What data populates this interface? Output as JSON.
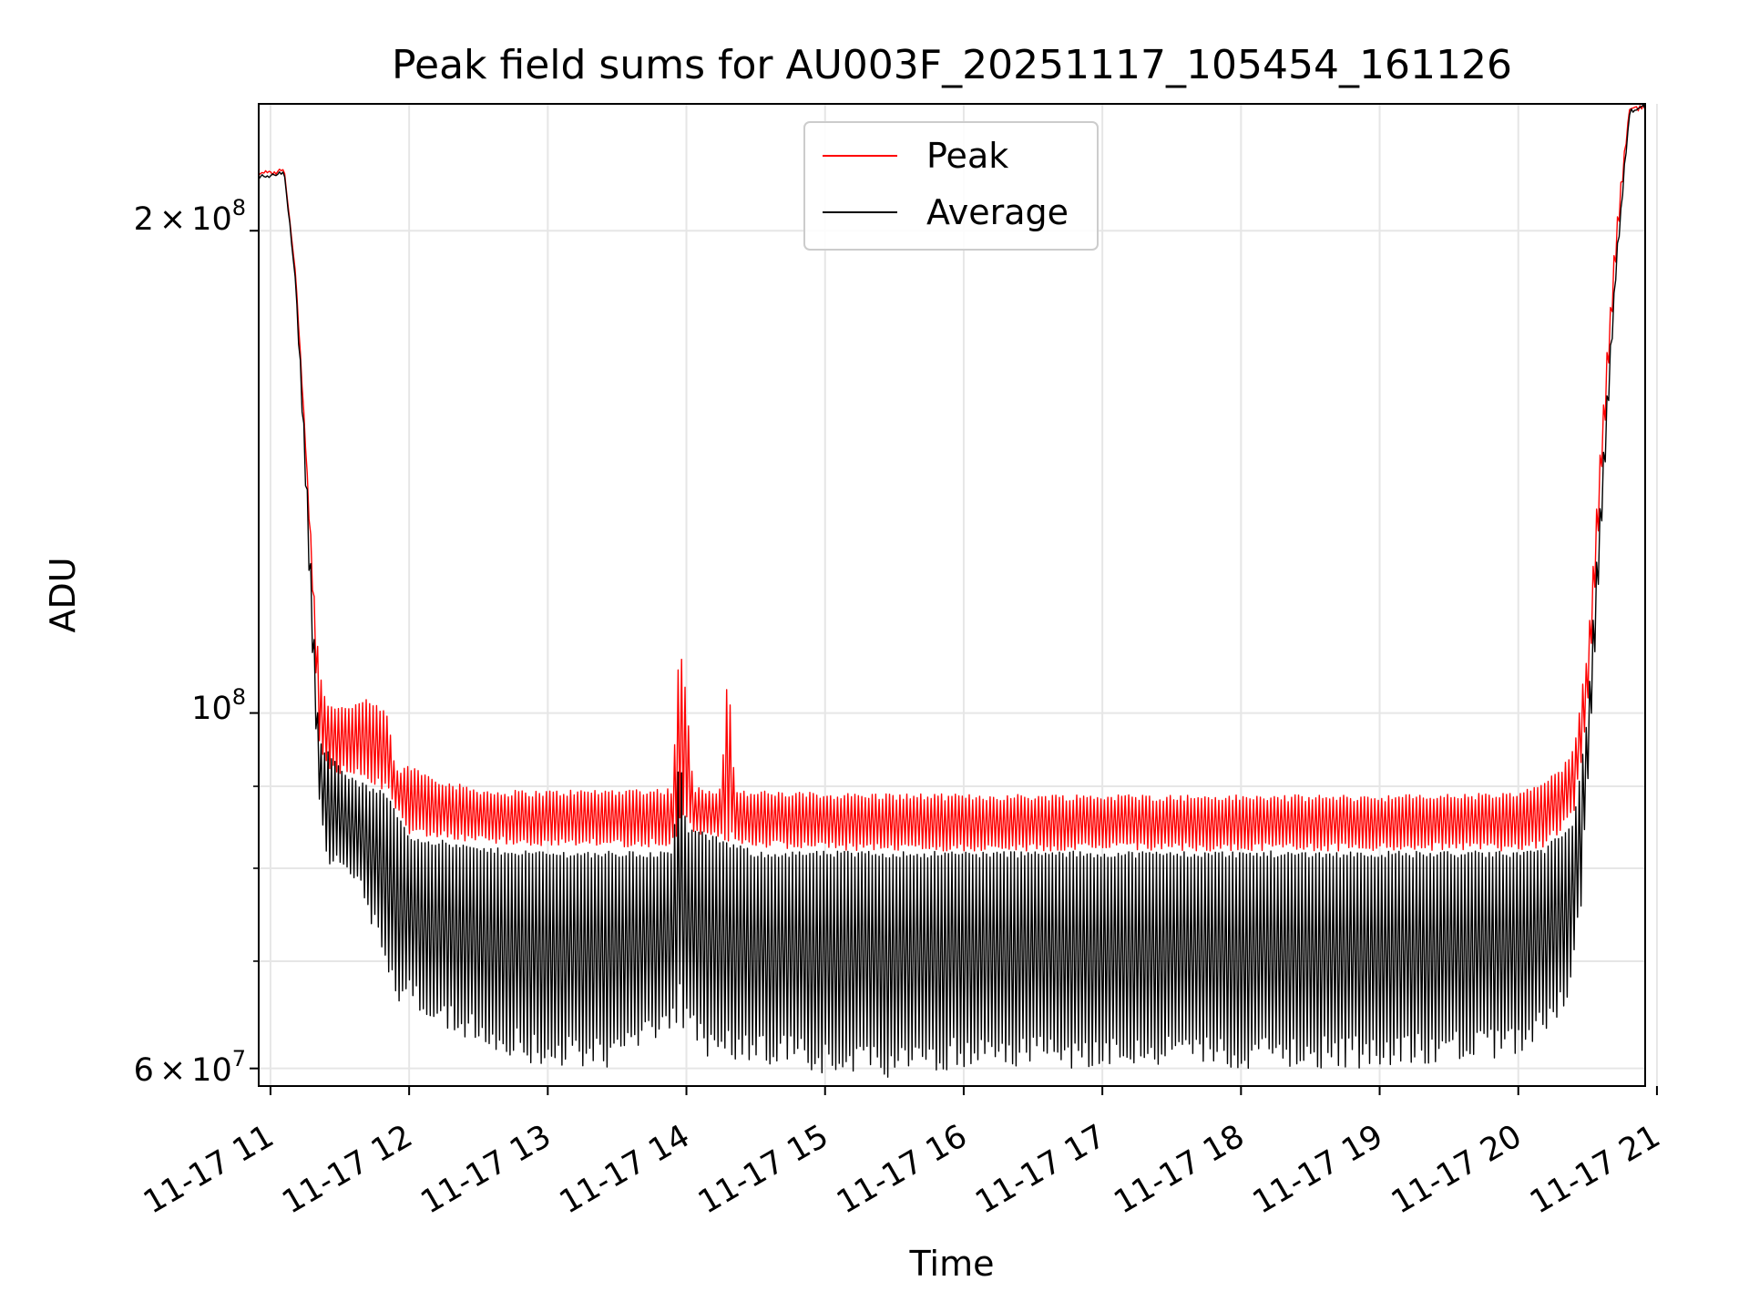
{
  "chart_data": {
    "type": "line",
    "title": "Peak field sums for AU003F_20251117_105454_161126",
    "xlabel": "Time",
    "ylabel": "ADU",
    "x_unit": "hour of 2025-11-17",
    "xlim": [
      10.915,
      20.915
    ],
    "ylim_log": [
      58500000,
      240000000
    ],
    "y_scale": "log",
    "grid": true,
    "legend_position": "upper center",
    "x_ticks": [
      {
        "value": 11,
        "label": "11-17 11"
      },
      {
        "value": 12,
        "label": "11-17 12"
      },
      {
        "value": 13,
        "label": "11-17 13"
      },
      {
        "value": 14,
        "label": "11-17 14"
      },
      {
        "value": 15,
        "label": "11-17 15"
      },
      {
        "value": 16,
        "label": "11-17 16"
      },
      {
        "value": 17,
        "label": "11-17 17"
      },
      {
        "value": 18,
        "label": "11-17 18"
      },
      {
        "value": 19,
        "label": "11-17 19"
      },
      {
        "value": 20,
        "label": "11-17 20"
      },
      {
        "value": 21,
        "label": "11-17 21"
      }
    ],
    "y_major_ticks": [
      {
        "value": 60000000,
        "mantissa": "6",
        "exponent": "7"
      },
      {
        "value": 100000000,
        "mantissa": "",
        "exponent": "8"
      },
      {
        "value": 200000000,
        "mantissa": "2",
        "exponent": "8"
      }
    ],
    "y_minor_ticks": [
      70000000,
      80000000,
      90000000
    ],
    "series": [
      {
        "name": "Peak",
        "color": "#ff0000",
        "envelope_top": [
          [
            10.915,
            218000000
          ],
          [
            11.1,
            219000000
          ],
          [
            11.18,
            190000000
          ],
          [
            11.25,
            150000000
          ],
          [
            11.3,
            125000000
          ],
          [
            11.35,
            107000000
          ],
          [
            11.4,
            102000000
          ],
          [
            11.5,
            101000000
          ],
          [
            11.7,
            102000000
          ],
          [
            11.85,
            100000000
          ],
          [
            11.9,
            92000000
          ],
          [
            12.0,
            93000000
          ],
          [
            12.1,
            92000000
          ],
          [
            12.3,
            90500000
          ],
          [
            12.6,
            89500000
          ],
          [
            13.0,
            89500000
          ],
          [
            13.5,
            89700000
          ],
          [
            13.9,
            89800000
          ],
          [
            13.95,
            112000000
          ],
          [
            14.0,
            102000000
          ],
          [
            14.05,
            90000000
          ],
          [
            14.25,
            89800000
          ],
          [
            14.3,
            108000000
          ],
          [
            14.35,
            89500000
          ],
          [
            15.0,
            89200000
          ],
          [
            16.0,
            89000000
          ],
          [
            17.0,
            89000000
          ],
          [
            18.0,
            88900000
          ],
          [
            19.0,
            88900000
          ],
          [
            20.0,
            89200000
          ],
          [
            20.1,
            90000000
          ],
          [
            20.3,
            92000000
          ],
          [
            20.4,
            95000000
          ],
          [
            20.5,
            110000000
          ],
          [
            20.6,
            150000000
          ],
          [
            20.7,
            200000000
          ],
          [
            20.8,
            240000000
          ],
          [
            20.915,
            240000000
          ]
        ],
        "envelope_bottom": [
          [
            10.915,
            217000000
          ],
          [
            11.1,
            218000000
          ],
          [
            11.18,
            188000000
          ],
          [
            11.25,
            148000000
          ],
          [
            11.3,
            120000000
          ],
          [
            11.35,
            95000000
          ],
          [
            11.4,
            92000000
          ],
          [
            11.6,
            91000000
          ],
          [
            11.85,
            89000000
          ],
          [
            12.0,
            84000000
          ],
          [
            12.5,
            83000000
          ],
          [
            13.0,
            82500000
          ],
          [
            13.9,
            82500000
          ],
          [
            14.0,
            84000000
          ],
          [
            14.5,
            82500000
          ],
          [
            15.0,
            82000000
          ],
          [
            16.0,
            82000000
          ],
          [
            17.0,
            82000000
          ],
          [
            18.0,
            82000000
          ],
          [
            19.0,
            82000000
          ],
          [
            20.0,
            82000000
          ],
          [
            20.2,
            82500000
          ],
          [
            20.4,
            86000000
          ],
          [
            20.5,
            100000000
          ],
          [
            20.6,
            140000000
          ],
          [
            20.7,
            190000000
          ],
          [
            20.8,
            238000000
          ],
          [
            20.915,
            240000000
          ]
        ]
      },
      {
        "name": "Average",
        "color": "#000000",
        "envelope_top": [
          [
            10.915,
            217000000
          ],
          [
            11.1,
            218000000
          ],
          [
            11.18,
            188000000
          ],
          [
            11.25,
            148000000
          ],
          [
            11.3,
            120000000
          ],
          [
            11.35,
            96000000
          ],
          [
            11.4,
            95000000
          ],
          [
            11.6,
            91000000
          ],
          [
            11.85,
            89000000
          ],
          [
            12.0,
            84000000
          ],
          [
            12.5,
            82500000
          ],
          [
            13.0,
            82000000
          ],
          [
            13.9,
            82000000
          ],
          [
            13.95,
            95000000
          ],
          [
            14.0,
            85000000
          ],
          [
            14.5,
            82000000
          ],
          [
            15.0,
            82000000
          ],
          [
            16.0,
            82000000
          ],
          [
            17.0,
            82000000
          ],
          [
            18.0,
            82000000
          ],
          [
            19.0,
            82000000
          ],
          [
            20.0,
            82000000
          ],
          [
            20.2,
            82500000
          ],
          [
            20.4,
            86000000
          ],
          [
            20.5,
            100000000
          ],
          [
            20.6,
            140000000
          ],
          [
            20.7,
            190000000
          ],
          [
            20.8,
            238000000
          ],
          [
            20.915,
            240000000
          ]
        ],
        "envelope_bottom": [
          [
            10.915,
            216000000
          ],
          [
            11.1,
            217000000
          ],
          [
            11.18,
            186000000
          ],
          [
            11.25,
            140000000
          ],
          [
            11.3,
            110000000
          ],
          [
            11.35,
            88000000
          ],
          [
            11.4,
            80000000
          ],
          [
            11.6,
            79000000
          ],
          [
            11.85,
            69000000
          ],
          [
            11.9,
            65000000
          ],
          [
            12.0,
            66000000
          ],
          [
            12.3,
            63000000
          ],
          [
            12.6,
            61500000
          ],
          [
            13.0,
            60000000
          ],
          [
            13.5,
            60000000
          ],
          [
            13.95,
            64000000
          ],
          [
            14.1,
            61000000
          ],
          [
            14.5,
            60500000
          ],
          [
            15.0,
            59500000
          ],
          [
            15.3,
            59000000
          ],
          [
            16.0,
            60000000
          ],
          [
            17.0,
            60000000
          ],
          [
            18.0,
            60000000
          ],
          [
            19.0,
            60000000
          ],
          [
            19.5,
            60500000
          ],
          [
            20.0,
            61000000
          ],
          [
            20.2,
            63000000
          ],
          [
            20.35,
            66000000
          ],
          [
            20.45,
            75000000
          ],
          [
            20.5,
            90000000
          ],
          [
            20.6,
            130000000
          ],
          [
            20.7,
            185000000
          ],
          [
            20.8,
            236000000
          ],
          [
            20.915,
            240000000
          ]
        ]
      }
    ]
  },
  "legend": {
    "items": [
      {
        "label": "Peak",
        "color": "#ff0000"
      },
      {
        "label": "Average",
        "color": "#000000"
      }
    ]
  },
  "y_tick_labels": {
    "t6e7": {
      "mantissa": "6",
      "times": "×",
      "base": "10",
      "exp": "7"
    },
    "t1e8": {
      "base": "10",
      "exp": "8"
    },
    "t2e8": {
      "mantissa": "2",
      "times": "×",
      "base": "10",
      "exp": "8"
    }
  }
}
